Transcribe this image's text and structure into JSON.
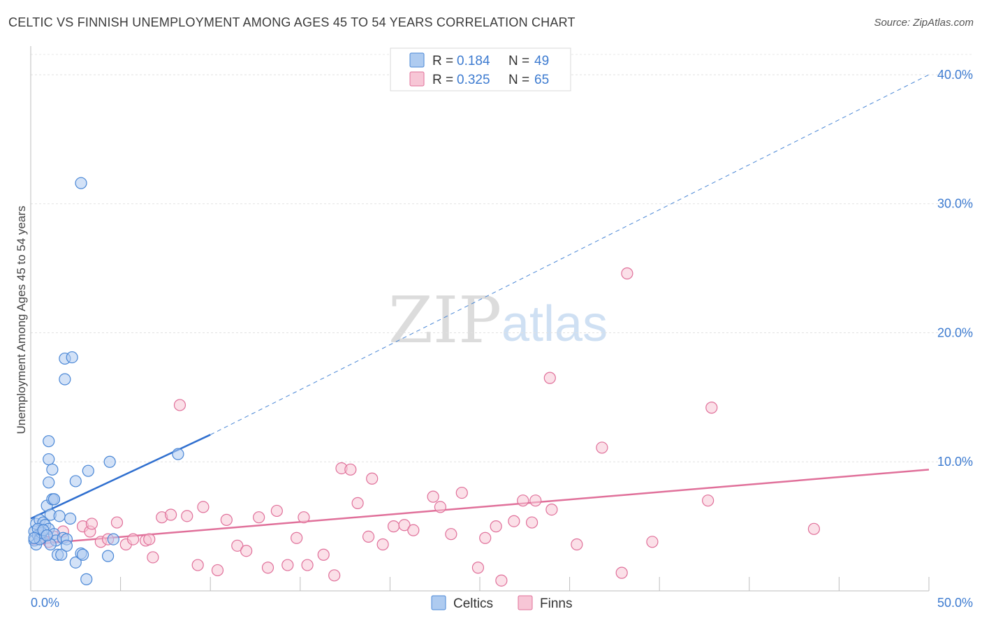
{
  "title": "CELTIC VS FINNISH UNEMPLOYMENT AMONG AGES 45 TO 54 YEARS CORRELATION CHART",
  "source": "Source: ZipAtlas.com",
  "watermark": {
    "zip": "ZIP",
    "atlas": "atlas"
  },
  "chart_data": {
    "type": "scatter",
    "title": "CELTIC VS FINNISH UNEMPLOYMENT AMONG AGES 45 TO 54 YEARS CORRELATION CHART",
    "xlabel": "",
    "ylabel": "Unemployment Among Ages 45 to 54 years",
    "xlim": [
      0,
      50
    ],
    "ylim": [
      0,
      42
    ],
    "x_tick_labels": [
      "0.0%",
      "50.0%"
    ],
    "y_ticks": [
      10,
      20,
      30,
      40
    ],
    "y_tick_labels": [
      "10.0%",
      "20.0%",
      "30.0%",
      "40.0%"
    ],
    "grid": true,
    "legend_top": [
      {
        "series": "Celtics",
        "r_label": "R =",
        "r_value": "0.184",
        "n_label": "N =",
        "n_value": "49"
      },
      {
        "series": "Finns",
        "r_label": "R =",
        "r_value": "0.325",
        "n_label": "N =",
        "n_value": "65"
      }
    ],
    "series": [
      {
        "name": "Celtics",
        "color": "#4a87d6",
        "fill": "#aecbf0",
        "trend": {
          "x0": 0.0,
          "y0": 5.6,
          "x1": 10.0,
          "y1": 12.1,
          "dashed_to_x": 50.0,
          "dashed_to_y": 40.0
        },
        "points": [
          [
            0.2,
            4.6
          ],
          [
            0.3,
            5.2
          ],
          [
            0.2,
            3.9
          ],
          [
            0.4,
            4.3
          ],
          [
            0.5,
            5.5
          ],
          [
            0.6,
            4.1
          ],
          [
            0.7,
            5.3
          ],
          [
            0.3,
            3.6
          ],
          [
            0.5,
            4.0
          ],
          [
            0.8,
            5.1
          ],
          [
            0.9,
            6.6
          ],
          [
            1.0,
            4.8
          ],
          [
            1.1,
            5.9
          ],
          [
            1.2,
            7.1
          ],
          [
            1.3,
            4.4
          ],
          [
            1.4,
            3.9
          ],
          [
            1.5,
            2.8
          ],
          [
            1.6,
            5.8
          ],
          [
            1.8,
            4.1
          ],
          [
            2.0,
            4.0
          ],
          [
            2.2,
            5.6
          ],
          [
            2.5,
            2.2
          ],
          [
            2.8,
            2.9
          ],
          [
            3.1,
            0.9
          ],
          [
            3.2,
            9.3
          ],
          [
            1.0,
            11.6
          ],
          [
            1.0,
            10.2
          ],
          [
            1.2,
            9.4
          ],
          [
            1.0,
            8.4
          ],
          [
            1.3,
            7.1
          ],
          [
            2.5,
            8.5
          ],
          [
            4.4,
            10.0
          ],
          [
            2.8,
            31.6
          ],
          [
            1.9,
            18.0
          ],
          [
            2.3,
            18.1
          ],
          [
            1.9,
            16.4
          ],
          [
            8.2,
            10.6
          ],
          [
            4.3,
            2.7
          ],
          [
            4.6,
            4.0
          ],
          [
            2.9,
            2.8
          ],
          [
            1.7,
            2.8
          ],
          [
            0.6,
            4.5
          ],
          [
            0.4,
            4.8
          ],
          [
            1.1,
            3.6
          ],
          [
            1.3,
            7.1
          ],
          [
            0.2,
            4.1
          ],
          [
            0.7,
            4.7
          ],
          [
            2.0,
            3.5
          ],
          [
            0.9,
            4.3
          ]
        ]
      },
      {
        "name": "Finns",
        "color": "#e0709a",
        "fill": "#f7c6d6",
        "trend": {
          "x0": 0.0,
          "y0": 3.6,
          "x1": 50.0,
          "y1": 9.4
        },
        "points": [
          [
            0.5,
            4.1
          ],
          [
            1.0,
            3.8
          ],
          [
            1.3,
            4.2
          ],
          [
            1.8,
            4.6
          ],
          [
            2.9,
            5.0
          ],
          [
            3.3,
            4.6
          ],
          [
            3.4,
            5.2
          ],
          [
            3.9,
            3.8
          ],
          [
            4.3,
            4.0
          ],
          [
            4.8,
            5.3
          ],
          [
            5.3,
            3.6
          ],
          [
            5.7,
            4.0
          ],
          [
            6.4,
            3.9
          ],
          [
            6.8,
            2.6
          ],
          [
            7.3,
            5.7
          ],
          [
            7.8,
            5.9
          ],
          [
            8.3,
            14.4
          ],
          [
            8.7,
            5.8
          ],
          [
            9.3,
            2.0
          ],
          [
            9.6,
            6.5
          ],
          [
            10.4,
            1.6
          ],
          [
            10.9,
            5.5
          ],
          [
            11.5,
            3.5
          ],
          [
            12.0,
            3.1
          ],
          [
            12.7,
            5.7
          ],
          [
            13.2,
            1.8
          ],
          [
            13.7,
            6.2
          ],
          [
            14.3,
            2.0
          ],
          [
            14.8,
            4.1
          ],
          [
            15.2,
            5.7
          ],
          [
            15.4,
            2.0
          ],
          [
            16.3,
            2.8
          ],
          [
            16.9,
            1.2
          ],
          [
            17.3,
            9.5
          ],
          [
            17.8,
            9.4
          ],
          [
            18.2,
            6.8
          ],
          [
            18.8,
            4.2
          ],
          [
            19.0,
            8.7
          ],
          [
            19.6,
            3.6
          ],
          [
            20.2,
            5.0
          ],
          [
            20.8,
            5.1
          ],
          [
            21.3,
            4.7
          ],
          [
            22.4,
            7.3
          ],
          [
            22.8,
            6.5
          ],
          [
            23.4,
            4.4
          ],
          [
            24.0,
            7.6
          ],
          [
            24.9,
            1.8
          ],
          [
            25.3,
            4.1
          ],
          [
            25.9,
            5.0
          ],
          [
            26.2,
            0.8
          ],
          [
            26.9,
            5.4
          ],
          [
            27.4,
            7.0
          ],
          [
            27.9,
            5.3
          ],
          [
            28.1,
            7.0
          ],
          [
            29.0,
            6.3
          ],
          [
            28.9,
            16.5
          ],
          [
            30.4,
            3.6
          ],
          [
            31.8,
            11.1
          ],
          [
            32.9,
            1.4
          ],
          [
            33.2,
            24.6
          ],
          [
            34.6,
            3.8
          ],
          [
            37.7,
            7.0
          ],
          [
            37.9,
            14.2
          ],
          [
            43.6,
            4.8
          ],
          [
            6.6,
            4.0
          ]
        ]
      }
    ]
  },
  "bottom_legend": [
    {
      "label": "Celtics"
    },
    {
      "label": "Finns"
    }
  ]
}
